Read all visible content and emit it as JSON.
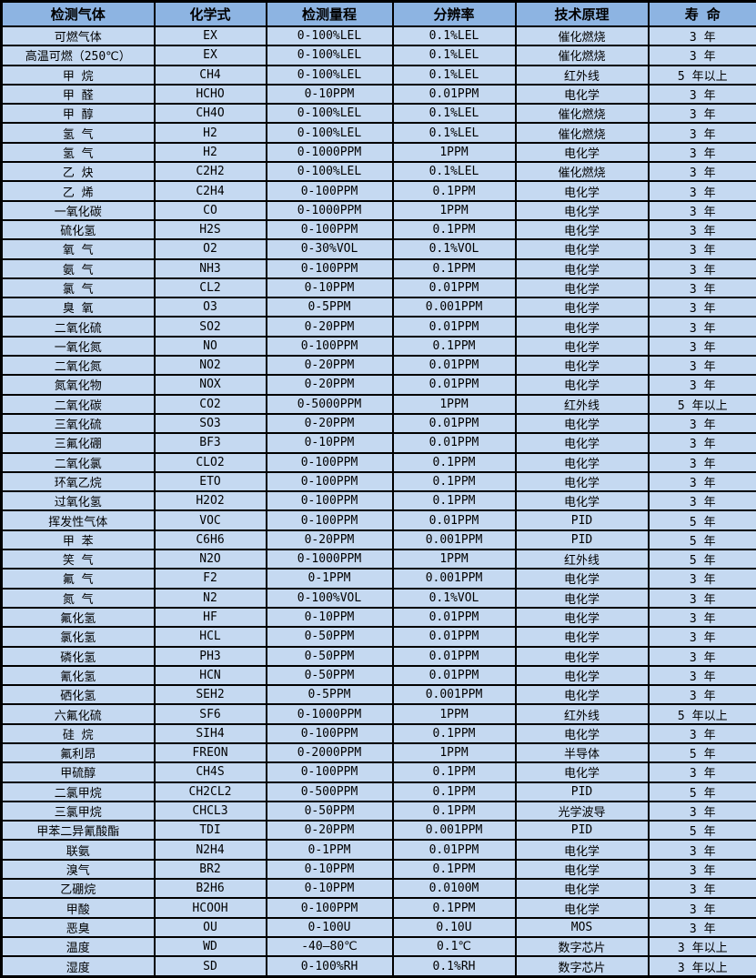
{
  "colors": {
    "header_bg": "#8DB4E2",
    "row_bg": "#C5D9F1",
    "border": "#000000",
    "text": "#000000"
  },
  "table": {
    "columns": [
      "检测气体",
      "化学式",
      "检测量程",
      "分辨率",
      "技术原理",
      "寿 命"
    ],
    "rows": [
      [
        "可燃气体",
        "EX",
        "0-100%LEL",
        "0.1%LEL",
        "催化燃烧",
        "3 年"
      ],
      [
        "高温可燃（250℃）",
        "EX",
        "0-100%LEL",
        "0.1%LEL",
        "催化燃烧",
        "3 年"
      ],
      [
        "甲 烷",
        "CH4",
        "0-100%LEL",
        "0.1%LEL",
        "红外线",
        "5 年以上"
      ],
      [
        "甲 醛",
        "HCHO",
        "0-10PPM",
        "0.01PPM",
        "电化学",
        "3 年"
      ],
      [
        "甲 醇",
        "CH4O",
        "0-100%LEL",
        "0.1%LEL",
        "催化燃烧",
        "3 年"
      ],
      [
        "氢 气",
        "H2",
        "0-100%LEL",
        "0.1%LEL",
        "催化燃烧",
        "3 年"
      ],
      [
        "氢 气",
        "H2",
        "0-1000PPM",
        "1PPM",
        "电化学",
        "3 年"
      ],
      [
        "乙 炔",
        "C2H2",
        "0-100%LEL",
        "0.1%LEL",
        "催化燃烧",
        "3 年"
      ],
      [
        "乙 烯",
        "C2H4",
        "0-100PPM",
        "0.1PPM",
        "电化学",
        "3 年"
      ],
      [
        "一氧化碳",
        "CO",
        "0-1000PPM",
        "1PPM",
        "电化学",
        "3 年"
      ],
      [
        "硫化氢",
        "H2S",
        "0-100PPM",
        "0.1PPM",
        "电化学",
        "3 年"
      ],
      [
        "氧 气",
        "O2",
        "0-30%VOL",
        "0.1%VOL",
        "电化学",
        "3 年"
      ],
      [
        "氨 气",
        "NH3",
        "0-100PPM",
        "0.1PPM",
        "电化学",
        "3 年"
      ],
      [
        "氯 气",
        "CL2",
        "0-10PPM",
        "0.01PPM",
        "电化学",
        "3 年"
      ],
      [
        "臭 氧",
        "O3",
        "0-5PPM",
        "0.001PPM",
        "电化学",
        "3 年"
      ],
      [
        "二氧化硫",
        "SO2",
        "0-20PPM",
        "0.01PPM",
        "电化学",
        "3 年"
      ],
      [
        "一氧化氮",
        "NO",
        "0-100PPM",
        "0.1PPM",
        "电化学",
        "3 年"
      ],
      [
        "二氧化氮",
        "NO2",
        "0-20PPM",
        "0.01PPM",
        "电化学",
        "3 年"
      ],
      [
        "氮氧化物",
        "NOX",
        "0-20PPM",
        "0.01PPM",
        "电化学",
        "3 年"
      ],
      [
        "二氧化碳",
        "CO2",
        "0-5000PPM",
        "1PPM",
        "红外线",
        "5 年以上"
      ],
      [
        "三氧化硫",
        "SO3",
        "0-20PPM",
        "0.01PPM",
        "电化学",
        "3 年"
      ],
      [
        "三氟化硼",
        "BF3",
        "0-10PPM",
        "0.01PPM",
        "电化学",
        "3 年"
      ],
      [
        "二氧化氯",
        "CLO2",
        "0-100PPM",
        "0.1PPM",
        "电化学",
        "3 年"
      ],
      [
        "环氧乙烷",
        "ETO",
        "0-100PPM",
        "0.1PPM",
        "电化学",
        "3 年"
      ],
      [
        "过氧化氢",
        "H2O2",
        "0-100PPM",
        "0.1PPM",
        "电化学",
        "3 年"
      ],
      [
        "挥发性气体",
        "VOC",
        "0-100PPM",
        "0.01PPM",
        "PID",
        "5 年"
      ],
      [
        "甲 苯",
        "C6H6",
        "0-20PPM",
        "0.001PPM",
        "PID",
        "5 年"
      ],
      [
        "笑 气",
        "N2O",
        "0-1000PPM",
        "1PPM",
        "红外线",
        "5 年"
      ],
      [
        "氟 气",
        "F2",
        "0-1PPM",
        "0.001PPM",
        "电化学",
        "3 年"
      ],
      [
        "氮 气",
        "N2",
        "0-100%VOL",
        "0.1%VOL",
        "电化学",
        "3 年"
      ],
      [
        "氟化氢",
        "HF",
        "0-10PPM",
        "0.01PPM",
        "电化学",
        "3 年"
      ],
      [
        "氯化氢",
        "HCL",
        "0-50PPM",
        "0.01PPM",
        "电化学",
        "3 年"
      ],
      [
        "磷化氢",
        "PH3",
        "0-50PPM",
        "0.01PPM",
        "电化学",
        "3 年"
      ],
      [
        "氰化氢",
        "HCN",
        "0-50PPM",
        "0.01PPM",
        "电化学",
        "3 年"
      ],
      [
        "硒化氢",
        "SEH2",
        "0-5PPM",
        "0.001PPM",
        "电化学",
        "3 年"
      ],
      [
        "六氟化硫",
        "SF6",
        "0-1000PPM",
        "1PPM",
        "红外线",
        "5 年以上"
      ],
      [
        "硅 烷",
        "SIH4",
        "0-100PPM",
        "0.1PPM",
        "电化学",
        "3 年"
      ],
      [
        "氟利昂",
        "FREON",
        "0-2000PPM",
        "1PPM",
        "半导体",
        "5 年"
      ],
      [
        "甲硫醇",
        "CH4S",
        "0-100PPM",
        "0.1PPM",
        "电化学",
        "3 年"
      ],
      [
        "二氯甲烷",
        "CH2CL2",
        "0-500PPM",
        "0.1PPM",
        "PID",
        "5 年"
      ],
      [
        "三氯甲烷",
        "CHCL3",
        "0-50PPM",
        "0.1PPM",
        "光学波导",
        "3 年"
      ],
      [
        "甲苯二异氰酸酯",
        "TDI",
        "0-20PPM",
        "0.001PPM",
        "PID",
        "5 年"
      ],
      [
        "联氨",
        "N2H4",
        "0-1PPM",
        "0.01PPM",
        "电化学",
        "3 年"
      ],
      [
        "溴气",
        "BR2",
        "0-10PPM",
        "0.1PPM",
        "电化学",
        "3 年"
      ],
      [
        "乙硼烷",
        "B2H6",
        "0-10PPM",
        "0.0100M",
        "电化学",
        "3 年"
      ],
      [
        "甲酸",
        "HCOOH",
        "0-100PPM",
        "0.1PPM",
        "电化学",
        "3 年"
      ],
      [
        "恶臭",
        "OU",
        "0-100U",
        "0.10U",
        "MOS",
        "3 年"
      ],
      [
        "温度",
        "WD",
        "-40—80℃",
        "0.1℃",
        "数字芯片",
        "3 年以上"
      ],
      [
        "湿度",
        "SD",
        "0-100%RH",
        "0.1%RH",
        "数字芯片",
        "3 年以上"
      ]
    ]
  }
}
